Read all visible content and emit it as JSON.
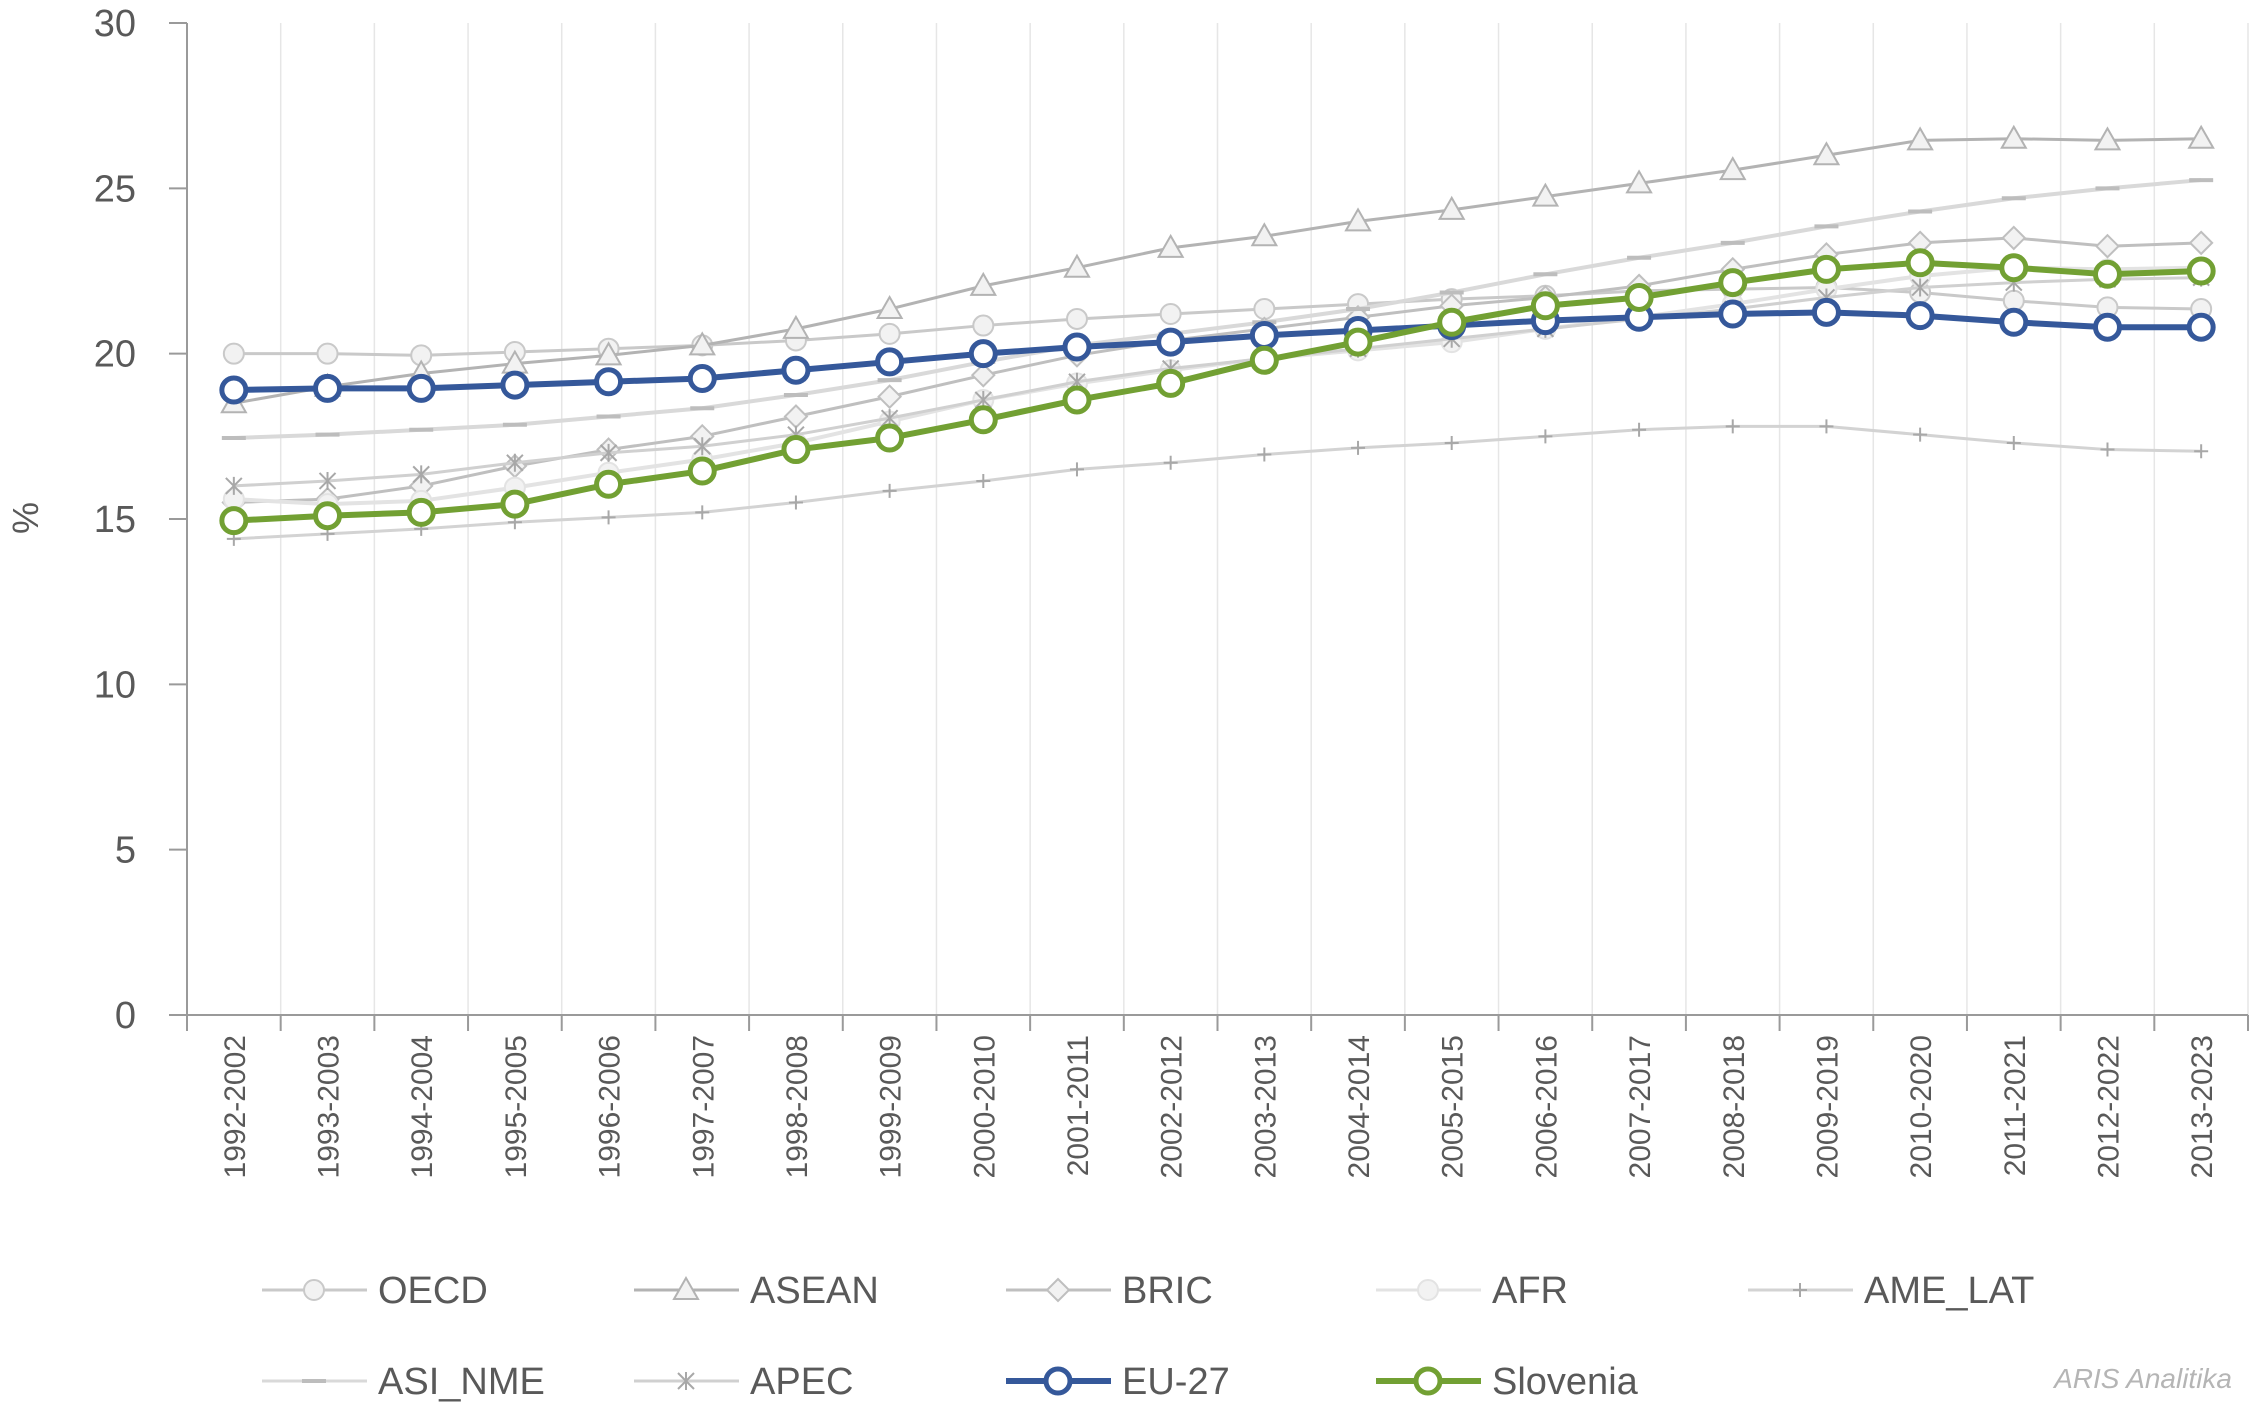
{
  "chart_data": {
    "type": "line",
    "title": "",
    "xlabel": "",
    "ylabel": "%",
    "ylim": [
      0,
      30
    ],
    "yticks": [
      "0",
      "5",
      "10",
      "15",
      "20",
      "25",
      "30"
    ],
    "grid": "vertical",
    "legend_position": "bottom",
    "categories": [
      "1992-2002",
      "1993-2003",
      "1994-2004",
      "1995-2005",
      "1996-2006",
      "1997-2007",
      "1998-2008",
      "1999-2009",
      "2000-2010",
      "2001-2011",
      "2002-2012",
      "2003-2013",
      "2004-2014",
      "2005-2015",
      "2006-2016",
      "2007-2017",
      "2008-2018",
      "2009-2019",
      "2010-2020",
      "2011-2021",
      "2012-2022",
      "2013-2023"
    ],
    "series": [
      {
        "name": "OECD",
        "color": "#c9c9c9",
        "marker": "circle",
        "values": [
          20.0,
          20.0,
          19.95,
          20.05,
          20.15,
          20.25,
          20.4,
          20.6,
          20.85,
          21.05,
          21.2,
          21.35,
          21.5,
          21.65,
          21.75,
          21.9,
          21.95,
          22.0,
          21.85,
          21.6,
          21.4,
          21.35
        ]
      },
      {
        "name": "ASEAN",
        "color": "#b3b3b3",
        "marker": "triangle",
        "values": [
          18.5,
          19.0,
          19.4,
          19.7,
          19.95,
          20.25,
          20.75,
          21.35,
          22.05,
          22.6,
          23.2,
          23.55,
          24.0,
          24.35,
          24.75,
          25.15,
          25.55,
          26.0,
          26.45,
          26.5,
          26.45,
          26.5
        ]
      },
      {
        "name": "BRIC",
        "color": "#bfbfbf",
        "marker": "diamond",
        "values": [
          15.5,
          15.6,
          16.0,
          16.6,
          17.1,
          17.5,
          18.1,
          18.7,
          19.35,
          19.95,
          20.4,
          20.75,
          21.1,
          21.45,
          21.7,
          22.05,
          22.55,
          23.0,
          23.35,
          23.5,
          23.25,
          23.35
        ]
      },
      {
        "name": "AFR",
        "color": "#e3e3e3",
        "marker": "circle",
        "values": [
          15.6,
          15.45,
          15.55,
          15.95,
          16.4,
          16.8,
          17.3,
          17.95,
          18.6,
          19.1,
          19.5,
          19.85,
          20.1,
          20.35,
          20.75,
          21.1,
          21.5,
          21.95,
          22.35,
          22.6,
          22.55,
          22.6
        ]
      },
      {
        "name": "AME_LAT",
        "color": "#d3d3d3",
        "marker": "plus",
        "values": [
          14.4,
          14.55,
          14.7,
          14.9,
          15.05,
          15.2,
          15.5,
          15.85,
          16.15,
          16.5,
          16.7,
          16.95,
          17.15,
          17.3,
          17.5,
          17.7,
          17.8,
          17.8,
          17.55,
          17.3,
          17.1,
          17.05
        ]
      },
      {
        "name": "ASI_NME",
        "color": "#d9d9d9",
        "marker": "dash",
        "values": [
          17.45,
          17.55,
          17.7,
          17.85,
          18.1,
          18.35,
          18.75,
          19.2,
          19.75,
          20.25,
          20.6,
          20.95,
          21.35,
          21.85,
          22.4,
          22.9,
          23.35,
          23.85,
          24.3,
          24.7,
          25.0,
          25.25
        ]
      },
      {
        "name": "APEC",
        "color": "#d0d0d0",
        "marker": "x",
        "values": [
          16.0,
          16.15,
          16.35,
          16.7,
          17.0,
          17.2,
          17.55,
          18.05,
          18.6,
          19.15,
          19.55,
          19.85,
          20.15,
          20.45,
          20.75,
          21.05,
          21.35,
          21.7,
          22.0,
          22.15,
          22.25,
          22.3
        ]
      },
      {
        "name": "EU-27",
        "color": "#35589a",
        "marker": "circle-open",
        "values": [
          18.9,
          18.95,
          18.95,
          19.05,
          19.15,
          19.25,
          19.5,
          19.75,
          20.0,
          20.2,
          20.35,
          20.55,
          20.7,
          20.85,
          21.0,
          21.1,
          21.2,
          21.25,
          21.15,
          20.95,
          20.8,
          20.8
        ]
      },
      {
        "name": "Slovenia",
        "color": "#72a033",
        "marker": "circle-open",
        "values": [
          14.95,
          15.1,
          15.2,
          15.45,
          16.05,
          16.45,
          17.1,
          17.45,
          18.0,
          18.6,
          19.1,
          19.8,
          20.35,
          20.95,
          21.45,
          21.7,
          22.15,
          22.55,
          22.75,
          22.6,
          22.4,
          22.5
        ]
      }
    ]
  },
  "watermark": "ARIS Analitika"
}
